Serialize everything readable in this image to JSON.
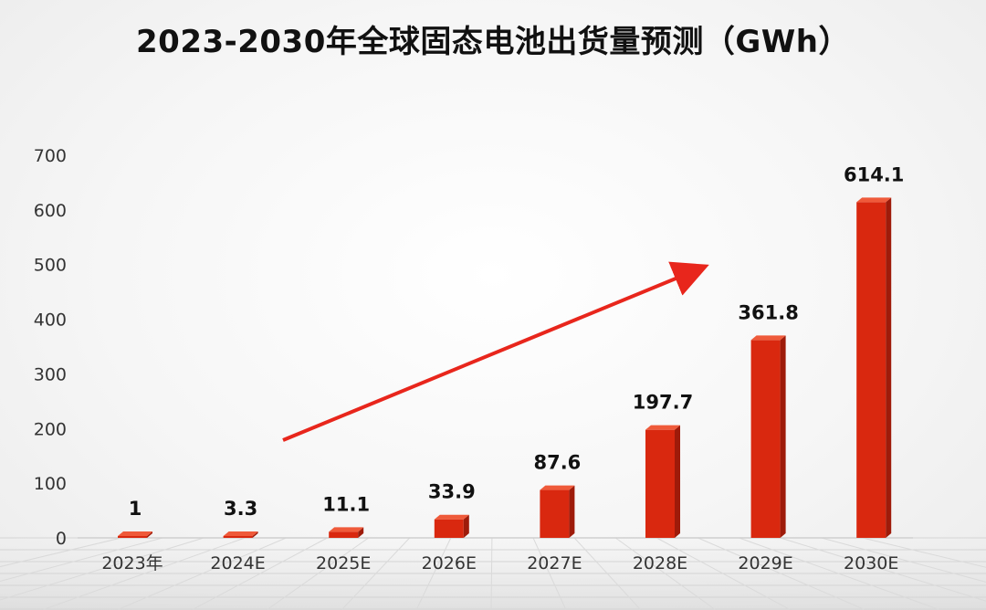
{
  "chart_data": {
    "type": "bar",
    "title": "2023-2030年全球固态电池出货量预测（GWh）",
    "categories": [
      "2023年",
      "2024E",
      "2025E",
      "2026E",
      "2027E",
      "2028E",
      "2029E",
      "2030E"
    ],
    "values": [
      1,
      3.3,
      11.1,
      33.9,
      87.6,
      197.7,
      361.8,
      614.1
    ],
    "data_labels": [
      "1",
      "3.3",
      "11.1",
      "33.9",
      "87.6",
      "197.7",
      "361.8",
      "614.1"
    ],
    "y_ticks": [
      0,
      100,
      200,
      300,
      400,
      500,
      600,
      700
    ],
    "ylim": [
      0,
      700
    ],
    "xlabel": "",
    "ylabel": "",
    "grid": false,
    "legend": "none",
    "bar_color": "#d9280f",
    "arrow_color": "#e8261c"
  }
}
